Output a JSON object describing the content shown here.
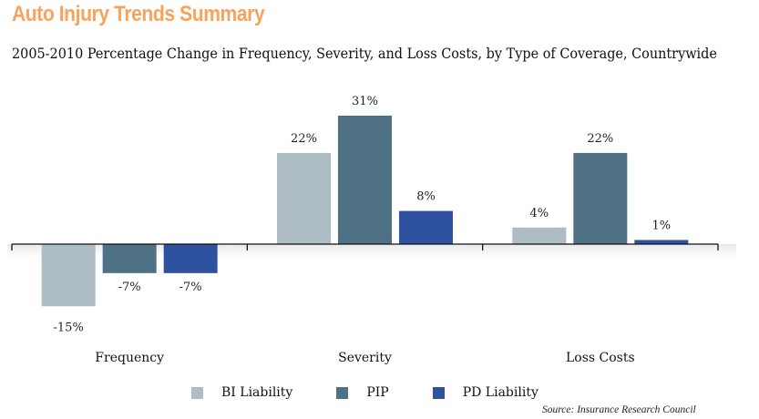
{
  "header": {
    "title": "Auto Injury Trends Summary",
    "subtitle": "2005-2010 Percentage Change in Frequency, Severity, and Loss Costs, by Type of Coverage, Countrywide"
  },
  "chart_data": {
    "type": "bar",
    "title": "Auto Injury Trends Summary",
    "subtitle": "2005-2010 Percentage Change in Frequency, Severity, and Loss Costs, by Type of Coverage, Countrywide",
    "categories": [
      "Frequency",
      "Severity",
      "Loss Costs"
    ],
    "series": [
      {
        "name": "BI Liability",
        "color": "#aebdc3",
        "values": [
          -15,
          22,
          4
        ],
        "labels": [
          "-15%",
          "22%",
          "4%"
        ]
      },
      {
        "name": "PIP",
        "color": "#4f7185",
        "values": [
          -7,
          31,
          22
        ],
        "labels": [
          "-7%",
          "31%",
          "22%"
        ]
      },
      {
        "name": "PD Liability",
        "color": "#2f52a0",
        "values": [
          -7,
          8,
          1
        ],
        "labels": [
          "-7%",
          "8%",
          "1%"
        ]
      }
    ],
    "xlabel": "",
    "ylabel": "Percentage change",
    "ylim": [
      -17,
      35
    ],
    "grid": false,
    "legend_position": "bottom",
    "source": "Source: Insurance Research Council"
  }
}
